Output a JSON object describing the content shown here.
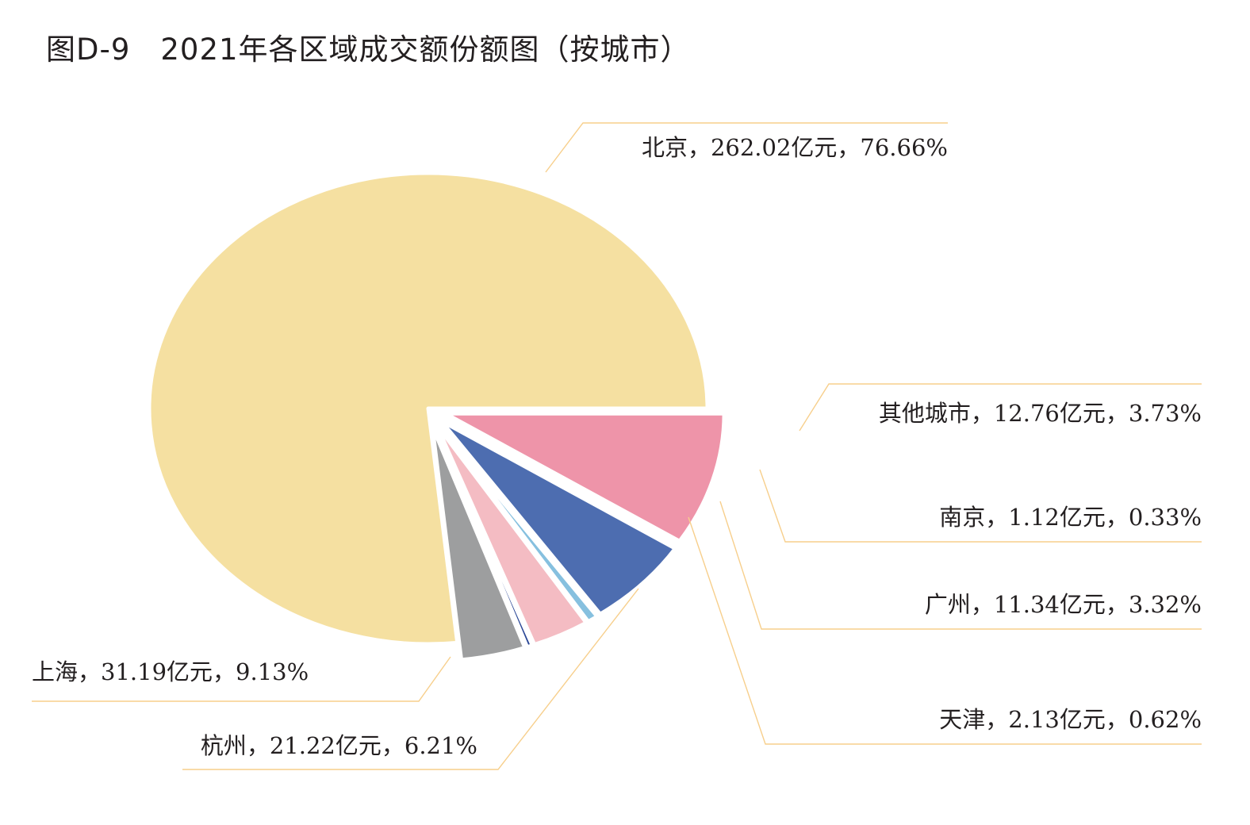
{
  "title": "图D-9　2021年各区域成交额份额图（按城市）",
  "chart_data": {
    "type": "pie",
    "title": "图D-9　2021年各区域成交额份额图（按城市）",
    "unit": "亿元",
    "series": [
      {
        "name": "北京",
        "value": 262.02,
        "percent": 76.66,
        "label": "北京，262.02亿元，76.66%",
        "color": "#f5e0a1"
      },
      {
        "name": "其他城市",
        "value": 12.76,
        "percent": 3.73,
        "label": "其他城市，12.76亿元，3.73%",
        "color": "#9d9e9f"
      },
      {
        "name": "南京",
        "value": 1.12,
        "percent": 0.33,
        "label": "南京，1.12亿元，0.33%",
        "color": "#2a4796"
      },
      {
        "name": "广州",
        "value": 11.34,
        "percent": 3.32,
        "label": "广州，11.34亿元，3.32%",
        "color": "#f4bcc3"
      },
      {
        "name": "天津",
        "value": 2.13,
        "percent": 0.62,
        "label": "天津，2.13亿元，0.62%",
        "color": "#86c0df"
      },
      {
        "name": "杭州",
        "value": 21.22,
        "percent": 6.21,
        "label": "杭州，21.22亿元，6.21%",
        "color": "#4d6db0"
      },
      {
        "name": "上海",
        "value": 31.19,
        "percent": 9.13,
        "label": "上海，31.19亿元，9.13%",
        "color": "#ee94a9"
      }
    ]
  }
}
